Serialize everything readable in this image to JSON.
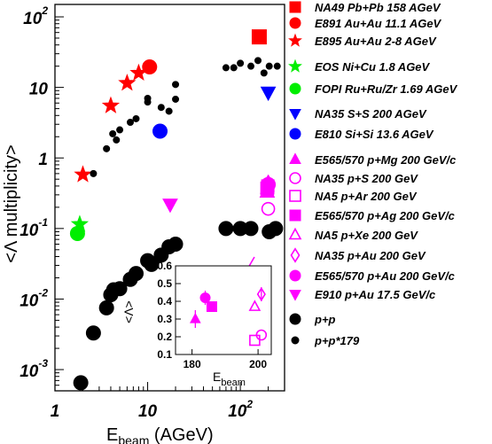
{
  "chart_data": {
    "type": "scatter",
    "xlabel": "E",
    "xlabel_sub": "beam",
    "xlabel_rest": " (AGeV)",
    "ylabel": "<Λ multiplicity>",
    "x_scale": "log",
    "y_scale": "log",
    "xlim": [
      1,
      300
    ],
    "ylim": [
      0.0005,
      150
    ],
    "x_ticks": [
      {
        "value": 1,
        "base": "1",
        "exp": ""
      },
      {
        "value": 10,
        "base": "10",
        "exp": ""
      },
      {
        "value": 100,
        "base": "10",
        "exp": "2"
      }
    ],
    "y_ticks": [
      {
        "value": 100,
        "base": "10",
        "exp": "2"
      },
      {
        "value": 10,
        "base": "10",
        "exp": ""
      },
      {
        "value": 1,
        "base": "1",
        "exp": ""
      },
      {
        "value": 0.1,
        "base": "10",
        "exp": "-1"
      },
      {
        "value": 0.01,
        "base": "10",
        "exp": "-2"
      },
      {
        "value": 0.001,
        "base": "10",
        "exp": "-3"
      }
    ],
    "legend_position": "right",
    "series": [
      {
        "name": "NA49 Pb+Pb 158 AGeV",
        "color": "#ff0000",
        "marker": "square",
        "fill": true,
        "size": 8,
        "points": [
          [
            160,
            52
          ]
        ]
      },
      {
        "name": "E891 Au+Au 11.1 AGeV",
        "color": "#ff0000",
        "marker": "circle",
        "fill": true,
        "size": 8,
        "points": [
          [
            10.5,
            19.5
          ]
        ]
      },
      {
        "name": "E895 Au+Au 2-8 AGeV",
        "color": "#ff0000",
        "marker": "star",
        "fill": true,
        "size": 8,
        "points": [
          [
            2.0,
            0.58
          ],
          [
            4.0,
            5.5
          ],
          [
            6.0,
            11.5
          ],
          [
            8.0,
            16
          ]
        ]
      },
      {
        "name": "EOS Ni+Cu 1.8 AGeV",
        "color": "#00ee00",
        "marker": "star",
        "fill": true,
        "size": 8,
        "points": [
          [
            1.85,
            0.115
          ]
        ]
      },
      {
        "name": "FOPI Ru+Ru/Zr 1.69 AGeV",
        "color": "#00ee00",
        "marker": "circle",
        "fill": true,
        "size": 8,
        "points": [
          [
            1.75,
            0.085
          ]
        ]
      },
      {
        "name": "NA35 S+S 200 AGeV",
        "color": "#0000ff",
        "marker": "triangle-down",
        "fill": true,
        "size": 8,
        "points": [
          [
            200,
            8.5
          ]
        ]
      },
      {
        "name": "E810 Si+Si 13.6 AGeV",
        "color": "#0000ff",
        "marker": "circle",
        "fill": true,
        "size": 8,
        "points": [
          [
            13.6,
            2.4
          ]
        ]
      },
      {
        "name": "E565/570 p+Mg 200 GeV/c",
        "color": "#ff00ff",
        "marker": "triangle-up",
        "fill": true,
        "size": 8,
        "points": [
          [
            195,
            0.33
          ]
        ]
      },
      {
        "name": "NA35 p+S 200 GeV",
        "color": "#ff00ff",
        "marker": "circle",
        "fill": false,
        "size": 7,
        "points": [
          [
            200,
            0.19
          ]
        ]
      },
      {
        "name": "NA5 p+Ar 200 GeV",
        "color": "#ff00ff",
        "marker": "square",
        "fill": false,
        "size": 7,
        "points": [
          [
            195,
            0.37
          ]
        ]
      },
      {
        "name": "E565/570 p+Ag 200 GeV/c",
        "color": "#ff00ff",
        "marker": "square",
        "fill": true,
        "size": 7,
        "points": [
          [
            198,
            0.4
          ]
        ]
      },
      {
        "name": "NA5 p+Xe 200 GeV",
        "color": "#ff00ff",
        "marker": "triangle-up",
        "fill": false,
        "size": 7,
        "points": [
          [
            195,
            0.37
          ]
        ]
      },
      {
        "name": "NA35 p+Au 200 GeV",
        "color": "#ff00ff",
        "marker": "diamond",
        "fill": false,
        "size": 7,
        "points": [
          [
            200,
            0.44
          ]
        ]
      },
      {
        "name": "E565/570 p+Au 200 GeV/c",
        "color": "#ff00ff",
        "marker": "circle",
        "fill": true,
        "size": 8,
        "points": [
          [
            200,
            0.42
          ]
        ]
      },
      {
        "name": "E910 p+Au 17.5 GeV/c",
        "color": "#ff00ff",
        "marker": "triangle-down",
        "fill": true,
        "size": 8,
        "points": [
          [
            17.5,
            0.22
          ]
        ]
      },
      {
        "name": "p+p",
        "color": "#000000",
        "marker": "circle",
        "fill": true,
        "size": 8,
        "points": [
          [
            1.9,
            0.00065
          ],
          [
            2.6,
            0.0033
          ],
          [
            3.6,
            0.0075
          ],
          [
            4.0,
            0.0115
          ],
          [
            4.3,
            0.0135
          ],
          [
            5.0,
            0.014
          ],
          [
            6.5,
            0.019
          ],
          [
            7.5,
            0.023
          ],
          [
            10,
            0.035
          ],
          [
            11,
            0.031
          ],
          [
            14,
            0.042
          ],
          [
            17,
            0.055
          ],
          [
            20,
            0.06
          ],
          [
            70,
            0.1
          ],
          [
            100,
            0.1
          ],
          [
            130,
            0.1
          ],
          [
            205,
            0.09
          ],
          [
            240,
            0.1
          ]
        ]
      },
      {
        "name": "p+p*179",
        "color": "#000000",
        "marker": "circle",
        "fill": true,
        "size": 3.5,
        "points": [
          [
            2.6,
            0.6
          ],
          [
            3.6,
            1.35
          ],
          [
            4.2,
            2.2
          ],
          [
            4.6,
            1.8
          ],
          [
            5.0,
            2.5
          ],
          [
            6.5,
            3.2
          ],
          [
            7.5,
            3.6
          ],
          [
            10,
            6.2
          ],
          [
            10,
            7.0
          ],
          [
            14,
            5.2
          ],
          [
            17,
            4.6
          ],
          [
            20,
            6.8
          ],
          [
            20,
            11
          ],
          [
            70,
            19
          ],
          [
            85,
            19
          ],
          [
            100,
            22
          ],
          [
            130,
            20
          ],
          [
            155,
            24
          ],
          [
            180,
            16
          ],
          [
            205,
            20
          ],
          [
            250,
            20
          ]
        ]
      }
    ],
    "inset": {
      "xlabel": "E",
      "xlabel_sub": "beam",
      "ylabel": "<Λ>",
      "xlim": [
        175,
        204
      ],
      "ylim": [
        0.1,
        0.6
      ],
      "x_ticks": [
        180,
        200
      ],
      "y_ticks": [
        0.1,
        0.2,
        0.3,
        0.4,
        0.5,
        0.6
      ],
      "points": [
        {
          "marker": "triangle-up",
          "fill": true,
          "x": 181,
          "y": 0.3,
          "err": 0.05
        },
        {
          "marker": "circle",
          "fill": true,
          "x": 184,
          "y": 0.42,
          "err": 0.04
        },
        {
          "marker": "square",
          "fill": true,
          "x": 186,
          "y": 0.37,
          "err": 0.0
        },
        {
          "marker": "diamond",
          "fill": false,
          "x": 201,
          "y": 0.44,
          "err": 0.04
        },
        {
          "marker": "triangle-up",
          "fill": false,
          "x": 199,
          "y": 0.37,
          "err": 0.0
        },
        {
          "marker": "circle",
          "fill": false,
          "x": 201,
          "y": 0.21,
          "err": 0.0
        },
        {
          "marker": "square",
          "fill": false,
          "x": 199,
          "y": 0.18,
          "err": 0.0
        }
      ]
    }
  }
}
